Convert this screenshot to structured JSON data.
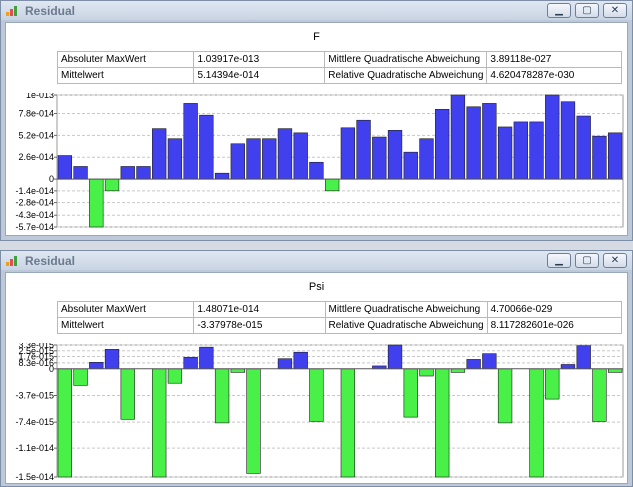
{
  "windows": [
    {
      "title": "Residual",
      "chart_title": "F",
      "stats": {
        "abs_max_label": "Absoluter MaxWert",
        "abs_max_value": "1.03917e-013",
        "mse_label": "Mittlere Quadratische Abweichung",
        "mse_value": "3.89118e-027",
        "mean_label": "Mittelwert",
        "mean_value": "5.14394e-014",
        "rel_mse_label": "Relative Quadratische Abweichung",
        "rel_mse_value": "4.620478287e-030"
      }
    },
    {
      "title": "Residual",
      "chart_title": "Psi",
      "stats": {
        "abs_max_label": "Absoluter MaxWert",
        "abs_max_value": "1.48071e-014",
        "mse_label": "Mittlere Quadratische Abweichung",
        "mse_value": "4.70066e-029",
        "mean_label": "Mittelwert",
        "mean_value": "-3.37978e-015",
        "rel_mse_label": "Relative Quadratische Abweichung",
        "rel_mse_value": "8.117282601e-026"
      }
    }
  ],
  "colors": {
    "positive": "#4040ee",
    "negative": "#48f048",
    "grid": "#c8c8c8"
  },
  "icons": {
    "app": "bar-chart-icon",
    "minimize": "minimize-icon",
    "maximize": "maximize-icon",
    "close": "close-icon"
  },
  "chart_data": [
    {
      "type": "bar",
      "title": "F",
      "ylim": [
        -5.7e-14,
        1e-13
      ],
      "yticks": [
        1e-13,
        7.8e-14,
        5.2e-14,
        2.6e-14,
        0,
        -1.4e-14,
        -2.8e-14,
        -4.3e-14,
        -5.7e-14
      ],
      "ytick_labels": [
        "1e-013",
        "7.8e-014",
        "5.2e-014",
        "2.6e-014",
        "0",
        "-1.4e-014",
        "-2.8e-014",
        "-4.3e-014",
        "-5.7e-014"
      ],
      "grid": true,
      "values": [
        2.8e-14,
        1.5e-14,
        -5.7e-14,
        -1.4e-14,
        1.5e-14,
        1.5e-14,
        6e-14,
        4.8e-14,
        9e-14,
        7.6e-14,
        7e-15,
        4.2e-14,
        4.8e-14,
        4.8e-14,
        6e-14,
        5.5e-14,
        2e-14,
        -1.4e-14,
        6.1e-14,
        7e-14,
        5e-14,
        5.8e-14,
        3.2e-14,
        4.8e-14,
        8.3e-14,
        1e-13,
        8.6e-14,
        9e-14,
        6.2e-14,
        6.8e-14,
        6.8e-14,
        1e-13,
        9.2e-14,
        7.5e-14,
        5.1e-14,
        5.5e-14
      ]
    },
    {
      "type": "bar",
      "title": "Psi",
      "ylim": [
        -1.5e-14,
        3.3e-15
      ],
      "yticks": [
        3.3e-15,
        2.5e-15,
        1.7e-15,
        8.3e-16,
        0,
        -3.7e-15,
        -7.4e-15,
        -1.1e-14,
        -1.5e-14
      ],
      "ytick_labels": [
        "3.3e-015",
        "2.5e-015",
        "1.7e-015",
        "8.3e-016",
        "0",
        "-3.7e-015",
        "-7.4e-015",
        "-1.1e-014",
        "-1.5e-014"
      ],
      "grid": true,
      "values": [
        -1.5e-14,
        -2.3e-15,
        9e-16,
        2.7e-15,
        -7e-15,
        0,
        -1.5e-14,
        -2e-15,
        1.6e-15,
        3e-15,
        -7.5e-15,
        -5e-16,
        -1.45e-14,
        0,
        1.4e-15,
        2.3e-15,
        -7.3e-15,
        0,
        -1.5e-14,
        0,
        4e-16,
        3.3e-15,
        -6.7e-15,
        -1e-15,
        -1.5e-14,
        -5e-16,
        1.3e-15,
        2.1e-15,
        -7.5e-15,
        0,
        -1.5e-14,
        -4.2e-15,
        6e-16,
        3.2e-15,
        -7.3e-15,
        -5e-16
      ]
    }
  ]
}
